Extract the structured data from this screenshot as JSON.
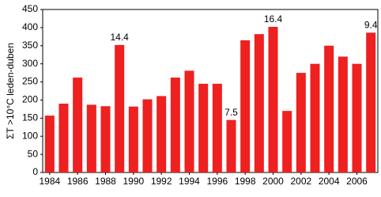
{
  "chart_data": {
    "type": "bar",
    "y_label": "ΣT >10°C leden-duben",
    "categories": [
      "1984",
      null,
      "1986",
      null,
      "1988",
      null,
      "1990",
      null,
      "1992",
      null,
      "1994",
      null,
      "1996",
      null,
      "1998",
      null,
      "2000",
      null,
      "2002",
      null,
      "2004",
      null,
      "2006",
      null
    ],
    "values": [
      157,
      190,
      262,
      187,
      183,
      352,
      182,
      202,
      211,
      262,
      281,
      245,
      245,
      145,
      365,
      382,
      402,
      170,
      275,
      300,
      350,
      320,
      300,
      386
    ],
    "color": "#ee2020",
    "ylim": [
      0,
      450
    ],
    "yticks": [
      0,
      50,
      100,
      150,
      200,
      250,
      300,
      350,
      400,
      450
    ],
    "grid": false,
    "annotations": [
      {
        "label": "14.4",
        "index": 5
      },
      {
        "label": "7.5",
        "index": 13
      },
      {
        "label": "16.4",
        "index": 16
      },
      {
        "label": "9.4",
        "index": 23
      }
    ]
  }
}
